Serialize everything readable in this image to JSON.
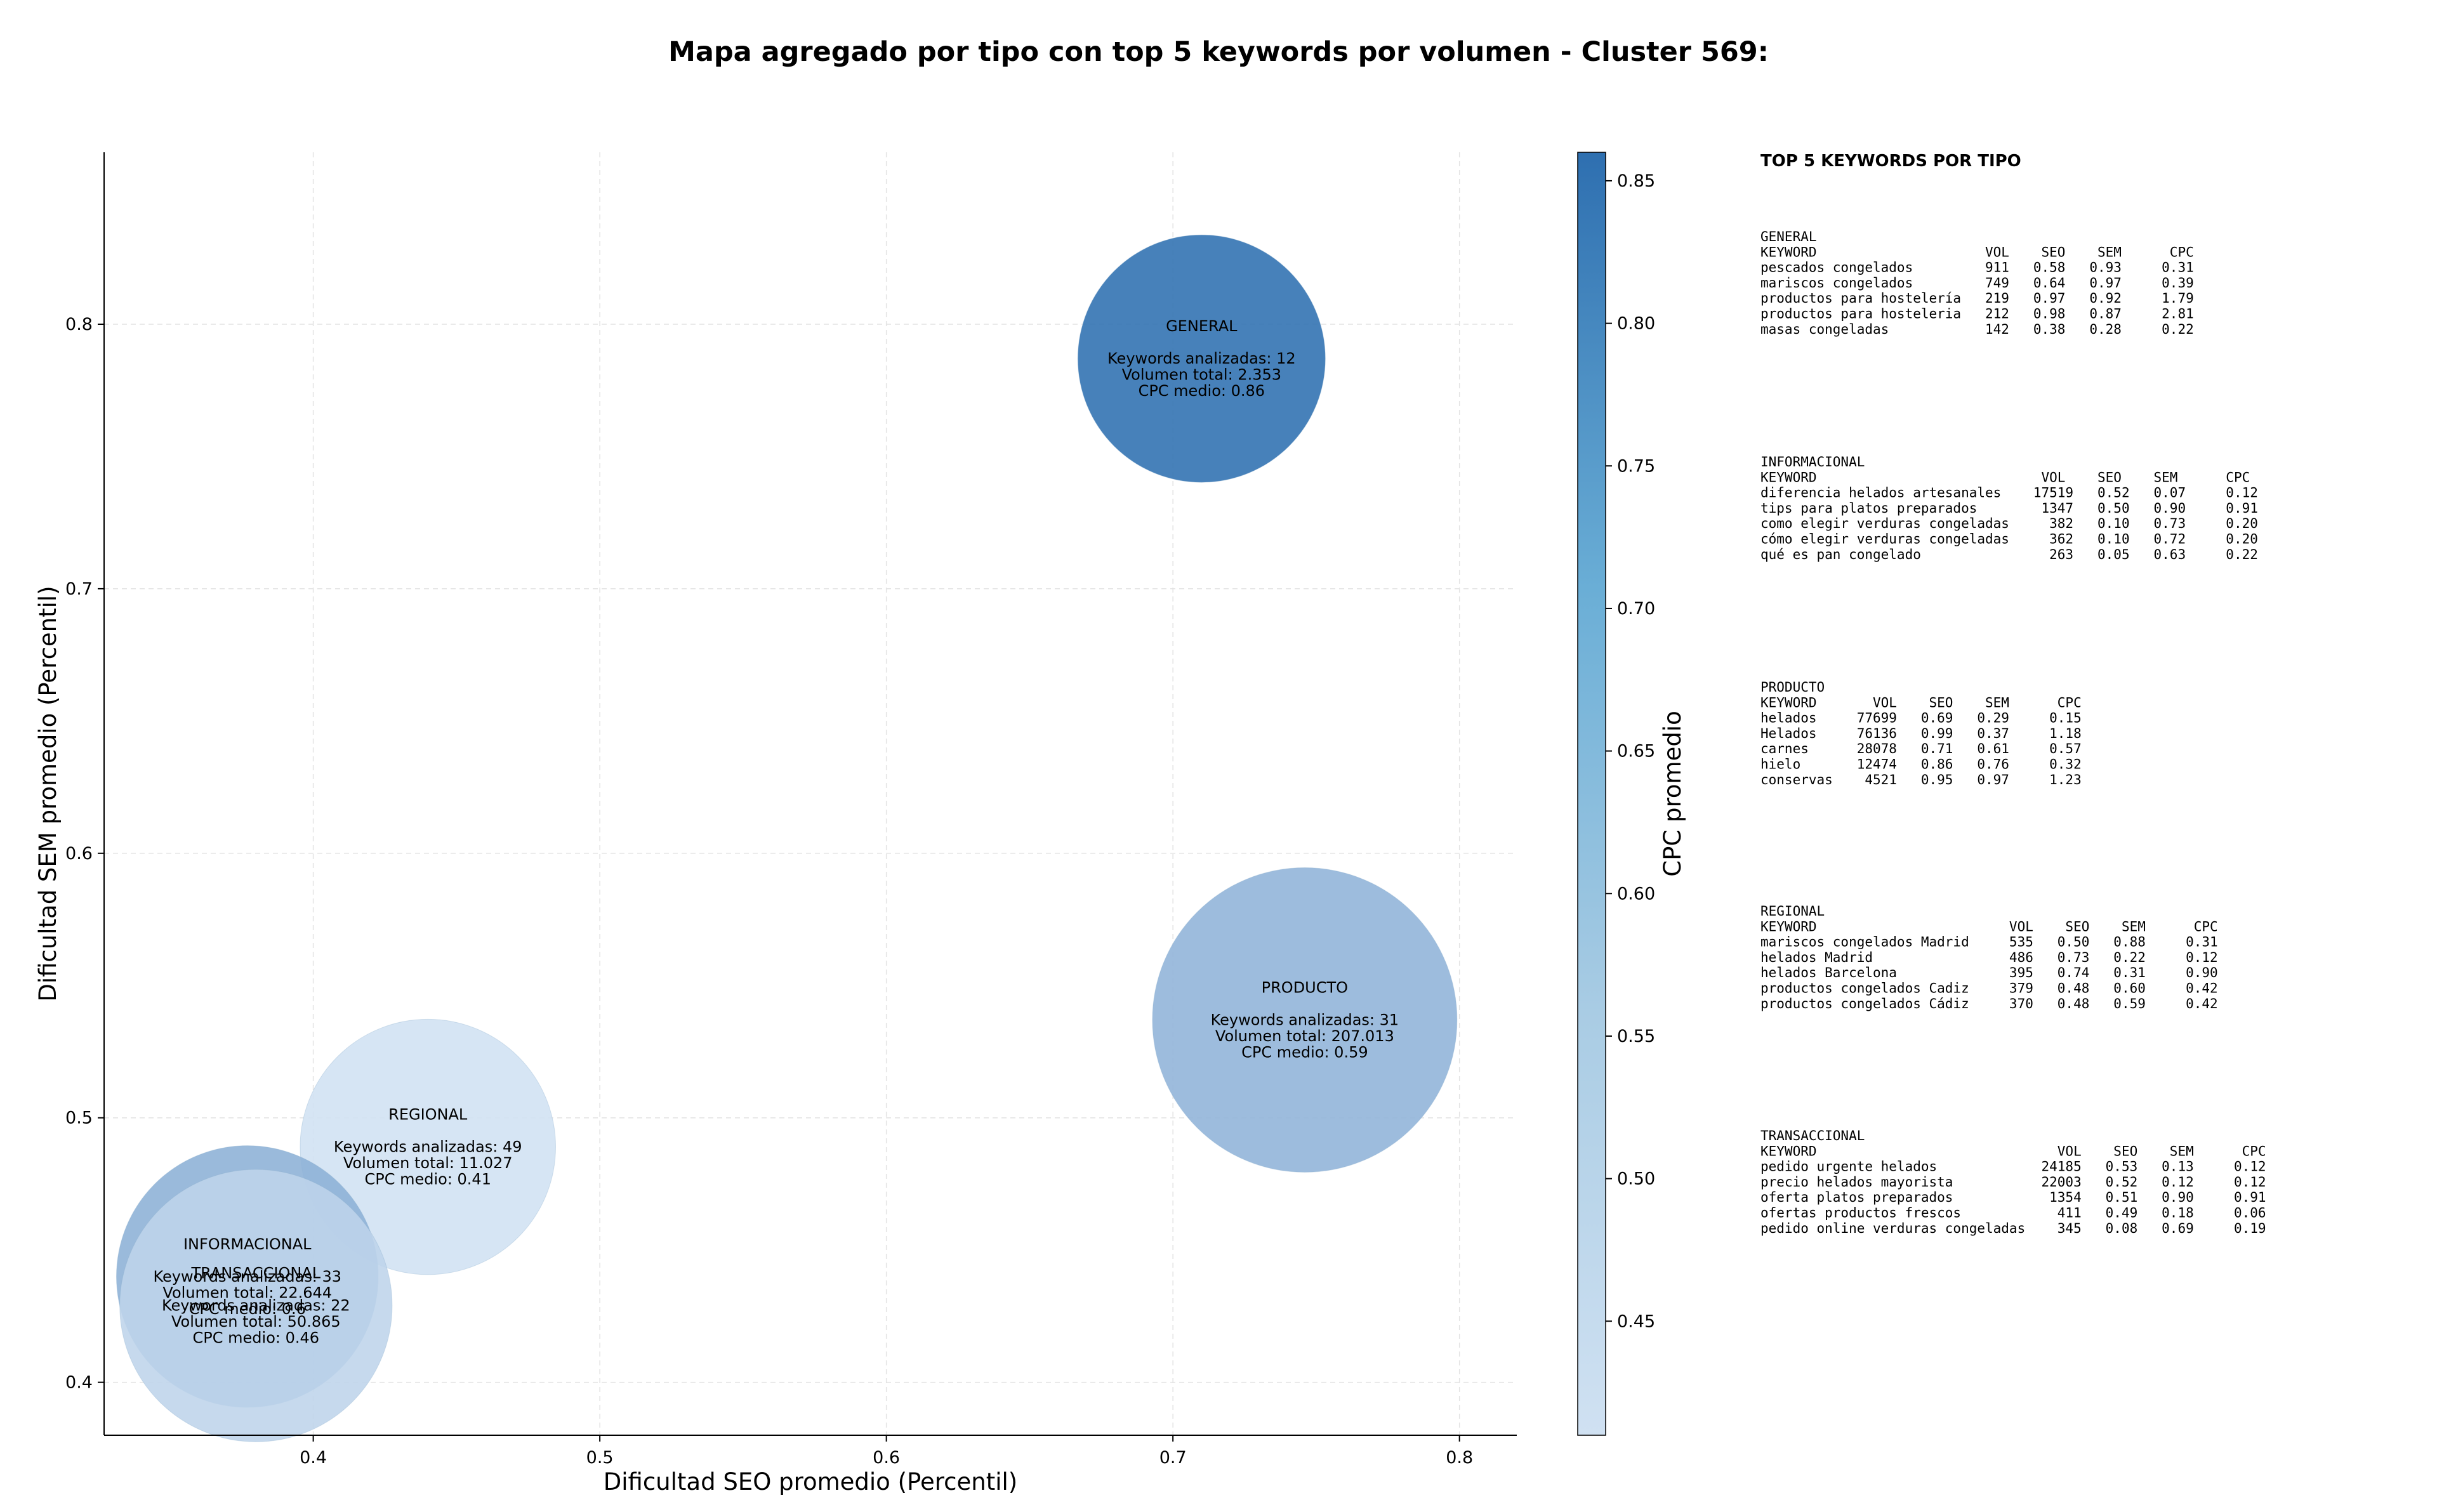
{
  "chart_data": {
    "type": "scatter",
    "variant": "bubble",
    "title": "Mapa agregado por tipo con top 5 keywords por volumen - Cluster 569:",
    "xlabel": "Dificultad SEO promedio (Percentil)",
    "ylabel": "Dificultad SEM promedio (Percentil)",
    "xlim": [
      0.327,
      0.82
    ],
    "ylim": [
      0.38,
      0.865
    ],
    "xticks": [
      "0.4",
      "0.5",
      "0.6",
      "0.7",
      "0.8"
    ],
    "yticks": [
      "0.4",
      "0.5",
      "0.6",
      "0.7",
      "0.8"
    ],
    "grid": true,
    "colorbar": {
      "label": "CPC promedio",
      "min": 0.41,
      "max": 0.86,
      "ticks": [
        "0.45",
        "0.50",
        "0.55",
        "0.60",
        "0.65",
        "0.70",
        "0.75",
        "0.80",
        "0.85"
      ],
      "color_low": "#d0e1f2",
      "color_high": "#2e6fb0"
    },
    "points": [
      {
        "tipo": "GENERAL",
        "x": 0.71,
        "y": 0.787,
        "cpc": 0.86,
        "size_value": 2353,
        "lines": [
          "GENERAL",
          "",
          "Keywords analizadas: 12",
          "Volumen total: 2.353",
          "CPC medio: 0.86"
        ]
      },
      {
        "tipo": "PRODUCTO",
        "x": 0.746,
        "y": 0.537,
        "cpc": 0.59,
        "size_value": 207013,
        "lines": [
          "PRODUCTO",
          "",
          "Keywords analizadas: 31",
          "Volumen total: 207.013",
          "CPC medio: 0.59"
        ]
      },
      {
        "tipo": "REGIONAL",
        "x": 0.44,
        "y": 0.489,
        "cpc": 0.41,
        "size_value": 11027,
        "lines": [
          "REGIONAL",
          "",
          "Keywords analizadas: 49",
          "Volumen total: 11.027",
          "CPC medio: 0.41"
        ]
      },
      {
        "tipo": "INFORMACIONAL",
        "x": 0.377,
        "y": 0.44,
        "cpc": 0.6,
        "size_value": 22644,
        "lines": [
          "INFORMACIONAL",
          "",
          "Keywords analizadas: 33",
          "Volumen total: 22.644",
          "CPC medio: 0.6"
        ]
      },
      {
        "tipo": "TRANSACCIONAL",
        "x": 0.38,
        "y": 0.429,
        "cpc": 0.46,
        "size_value": 50865,
        "lines": [
          "TRANSACCIONAL",
          "",
          "Keywords analizadas: 22",
          "Volumen total: 50.865",
          "CPC medio: 0.46"
        ]
      }
    ]
  },
  "panel": {
    "heading": "TOP 5 KEYWORDS POR TIPO",
    "groups": [
      {
        "name": "GENERAL",
        "header": "KEYWORD                     VOL    SEO    SEM      CPC",
        "rows": [
          "pescados congelados         911   0.58   0.93     0.31",
          "mariscos congelados         749   0.64   0.97     0.39",
          "productos para hostelería   219   0.97   0.92     1.79",
          "productos para hosteleria   212   0.98   0.87     2.81",
          "masas congeladas            142   0.38   0.28     0.22"
        ]
      },
      {
        "name": "INFORMACIONAL",
        "header": "KEYWORD                            VOL    SEO    SEM      CPC",
        "rows": [
          "diferencia helados artesanales    17519   0.52   0.07     0.12",
          "tips para platos preparados        1347   0.50   0.90     0.91",
          "como elegir verduras congeladas     382   0.10   0.73     0.20",
          "cómo elegir verduras congeladas     362   0.10   0.72     0.20",
          "qué es pan congelado                263   0.05   0.63     0.22"
        ]
      },
      {
        "name": "PRODUCTO",
        "header": "KEYWORD       VOL    SEO    SEM      CPC",
        "rows": [
          "helados     77699   0.69   0.29     0.15",
          "Helados     76136   0.99   0.37     1.18",
          "carnes      28078   0.71   0.61     0.57",
          "hielo       12474   0.86   0.76     0.32",
          "conservas    4521   0.95   0.97     1.23"
        ]
      },
      {
        "name": "REGIONAL",
        "header": "KEYWORD                        VOL    SEO    SEM      CPC",
        "rows": [
          "mariscos congelados Madrid     535   0.50   0.88     0.31",
          "helados Madrid                 486   0.73   0.22     0.12",
          "helados Barcelona              395   0.74   0.31     0.90",
          "productos congelados Cadiz     379   0.48   0.60     0.42",
          "productos congelados Cádiz     370   0.48   0.59     0.42"
        ]
      },
      {
        "name": "TRANSACCIONAL",
        "header": "KEYWORD                              VOL    SEO    SEM      CPC",
        "rows": [
          "pedido urgente helados             24185   0.53   0.13     0.12",
          "precio helados mayorista           22003   0.52   0.12     0.12",
          "oferta platos preparados            1354   0.51   0.90     0.91",
          "ofertas productos frescos            411   0.49   0.18     0.06",
          "pedido online verduras congeladas    345   0.08   0.69     0.19"
        ]
      }
    ]
  }
}
